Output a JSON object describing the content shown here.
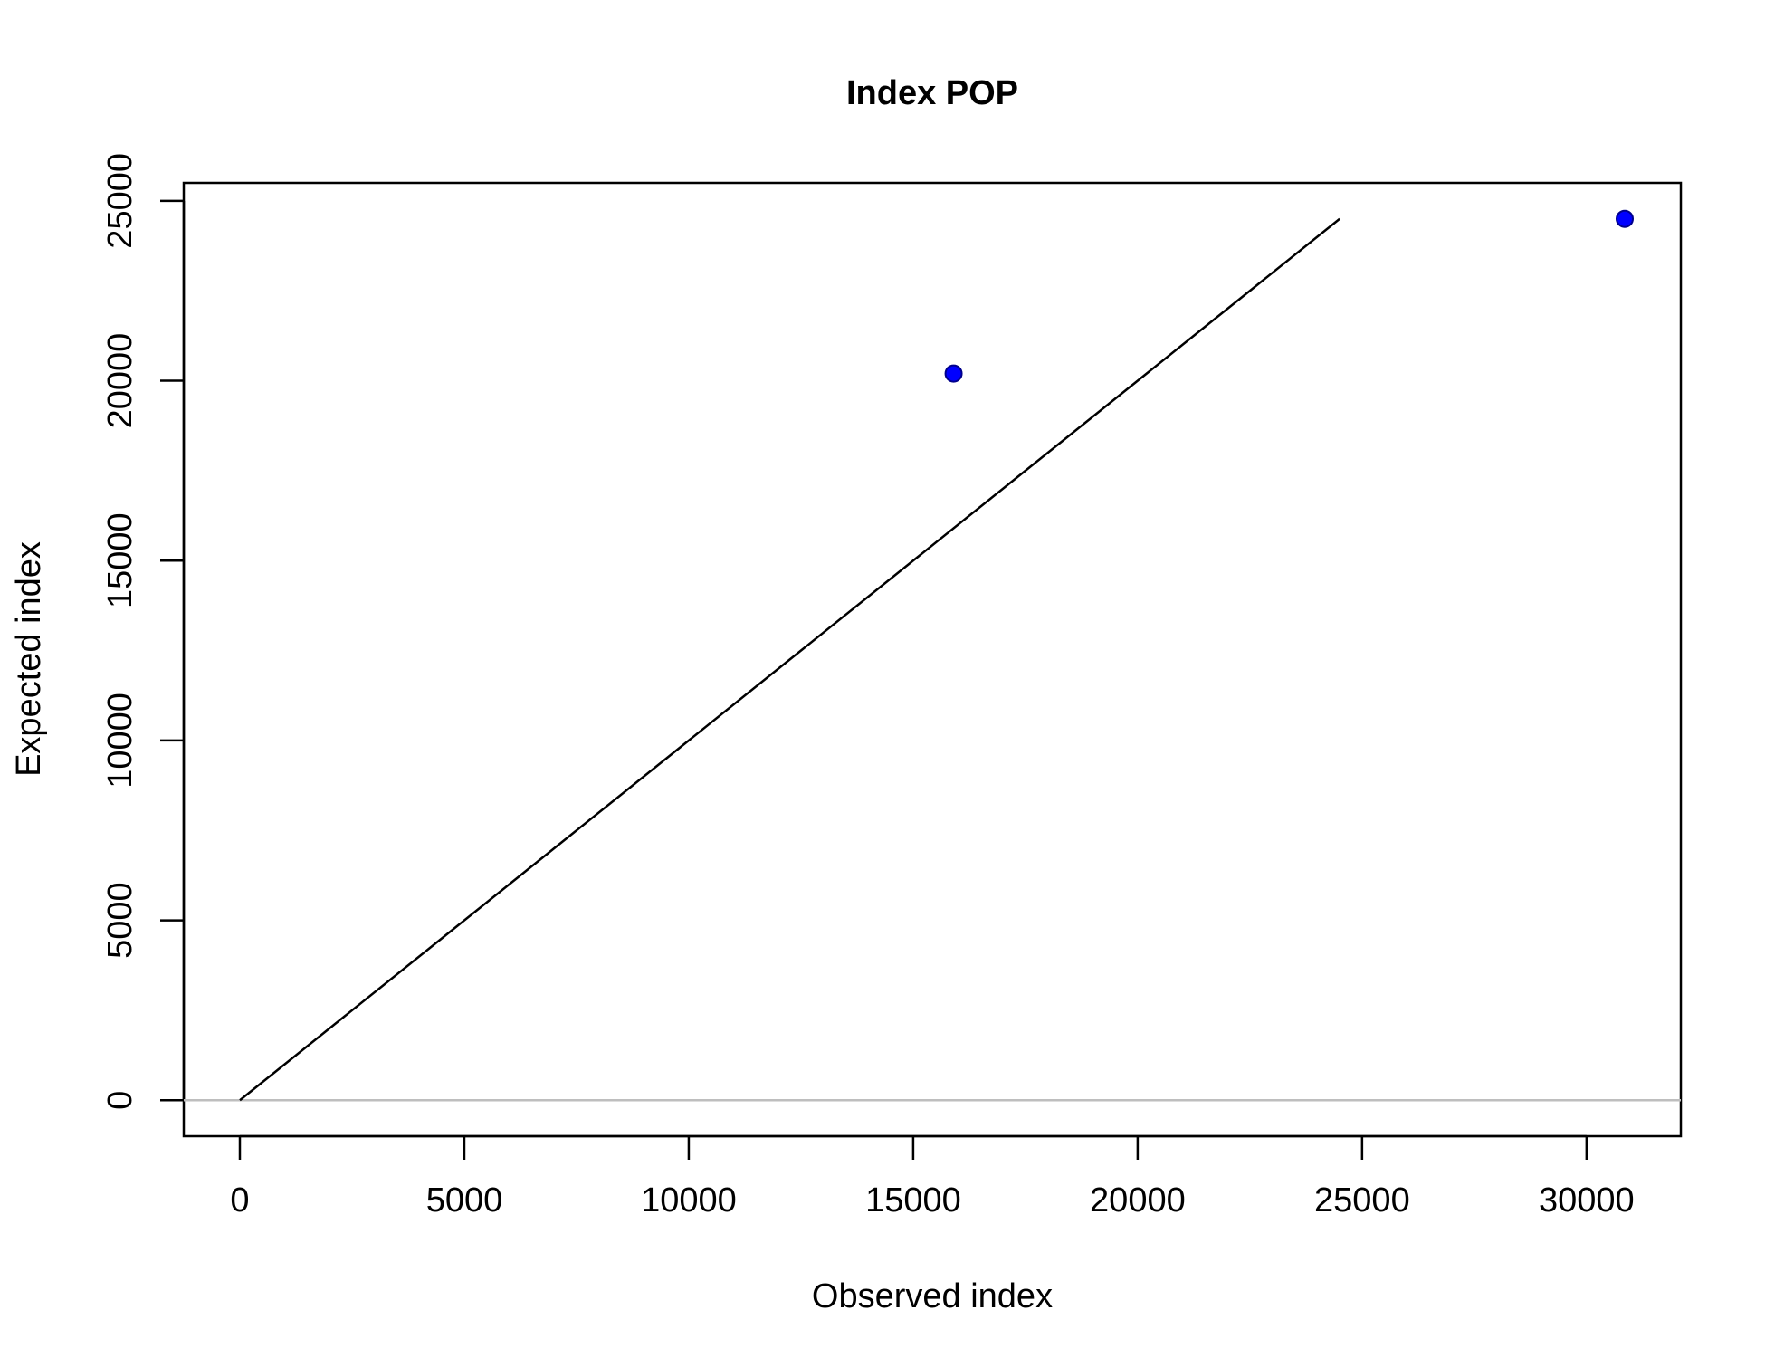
{
  "chart_data": {
    "type": "scatter",
    "title": "Index POP",
    "xlabel": "Observed index",
    "ylabel": "Expected index",
    "xlim": [
      -1250,
      32100
    ],
    "ylim": [
      -1000,
      25500
    ],
    "x_ticks": [
      0,
      5000,
      10000,
      15000,
      20000,
      25000,
      30000
    ],
    "y_ticks": [
      0,
      5000,
      10000,
      15000,
      20000,
      25000
    ],
    "x_tick_labels": [
      "0",
      "5000",
      "10000",
      "15000",
      "20000",
      "25000",
      "30000"
    ],
    "y_tick_labels": [
      "0",
      "5000",
      "10000",
      "15000",
      "20000",
      "25000"
    ],
    "points": [
      {
        "x": 15900,
        "y": 20200
      },
      {
        "x": 30850,
        "y": 24500
      }
    ],
    "reference_line": {
      "x": [
        0,
        24500
      ],
      "y": [
        0,
        24500
      ],
      "color": "#000000"
    },
    "zero_line": {
      "y": 0,
      "color": "#bebebe"
    },
    "point_fill": "#0000ff",
    "point_stroke": "#00008b",
    "grid": false,
    "legend": "none"
  }
}
